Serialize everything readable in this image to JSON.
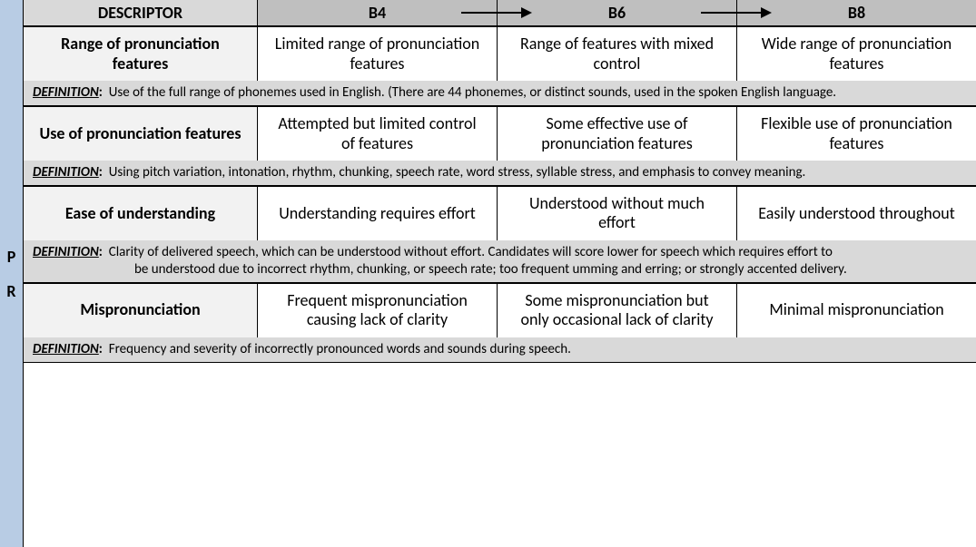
{
  "sidebar": {
    "letters": [
      "P",
      "R"
    ]
  },
  "header": {
    "descriptor": "DESCRIPTOR",
    "levels": [
      "B4",
      "B6",
      "B8"
    ]
  },
  "defLabel": "DEFINITION",
  "sections": [
    {
      "descriptor": "Range of pronunciation features",
      "b4": "Limited range of pronunciation features",
      "b6": "Range of features with mixed control",
      "b8": "Wide range of pronunciation features",
      "definition": "Use of the full range of phonemes used in English. (There are 44 phonemes, or distinct sounds, used in the spoken English language."
    },
    {
      "descriptor": "Use of pronunciation features",
      "b4": "Attempted but limited control of features",
      "b6": "Some effective use of pronunciation features",
      "b8": "Flexible use of pronunciation features",
      "definition": "Using pitch variation, intonation, rhythm, chunking, speech rate, word stress, syllable stress, and emphasis to convey meaning."
    },
    {
      "descriptor": "Ease of understanding",
      "b4": "Understanding requires effort",
      "b6": "Understood without much effort",
      "b8": "Easily understood throughout",
      "definition": "Clarity of delivered speech, which can be understood without effort. Candidates will score lower for speech which requires effort to",
      "definition2": "be understood due to incorrect rhythm, chunking, or speech rate; too frequent umming and erring; or strongly accented delivery."
    },
    {
      "descriptor": "Mispronunciation",
      "b4": "Frequent mispronunciation causing lack of clarity",
      "b6": "Some mispronunciation but only occasional lack of clarity",
      "b8": "Minimal mispronunciation",
      "definition": "Frequency and severity of incorrectly pronounced words and sounds during speech."
    }
  ]
}
